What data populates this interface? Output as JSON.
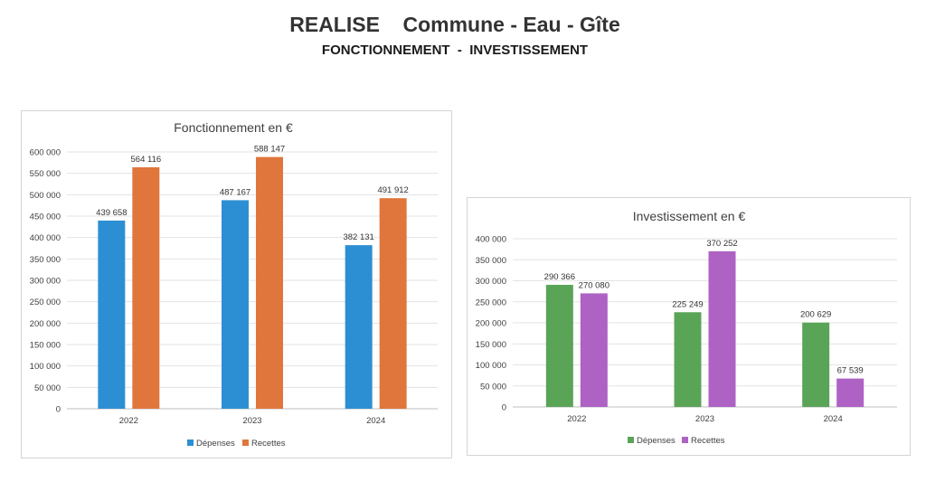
{
  "header": {
    "title": "REALISE    Commune - Eau - Gîte",
    "subtitle": "FONCTIONNEMENT  -  INVESTISSEMENT"
  },
  "chart_data": [
    {
      "type": "bar",
      "title": "Fonctionnement en €",
      "categories": [
        "2022",
        "2023",
        "2024"
      ],
      "series": [
        {
          "name": "Dépenses",
          "color": "#2d8fd3",
          "values": [
            439658,
            487167,
            382131
          ],
          "labels": [
            "439 658",
            "487 167",
            "382 131"
          ]
        },
        {
          "name": "Recettes",
          "color": "#e0763c",
          "values": [
            564116,
            588147,
            491912
          ],
          "labels": [
            "564 116",
            "588 147",
            "491 912"
          ]
        }
      ],
      "ylim": [
        0,
        600000
      ],
      "yticks": [
        "0",
        "50 000",
        "100 000",
        "150 000",
        "200 000",
        "250 000",
        "300 000",
        "350 000",
        "400 000",
        "450 000",
        "500 000",
        "550 000",
        "600 000"
      ],
      "grid": true,
      "legend": "bottom"
    },
    {
      "type": "bar",
      "title": "Investissement en €",
      "categories": [
        "2022",
        "2023",
        "2024"
      ],
      "series": [
        {
          "name": "Dépenses",
          "color": "#5aa457",
          "values": [
            290366,
            225249,
            200629
          ],
          "labels": [
            "290 366",
            "225 249",
            "200 629"
          ]
        },
        {
          "name": "Recettes",
          "color": "#ad62c4",
          "values": [
            270080,
            370252,
            67539
          ],
          "labels": [
            "270 080",
            "370 252",
            "67 539"
          ]
        }
      ],
      "ylim": [
        0,
        400000
      ],
      "yticks": [
        "0",
        "50 000",
        "100 000",
        "150 000",
        "200 000",
        "250 000",
        "300 000",
        "350 000",
        "400 000"
      ],
      "grid": true,
      "legend": "bottom"
    }
  ]
}
